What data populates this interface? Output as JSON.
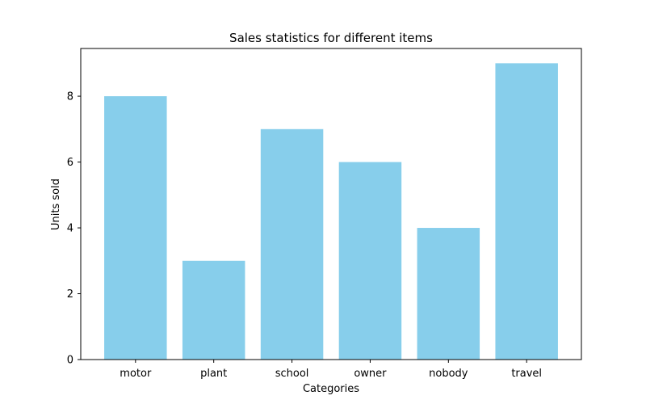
{
  "chart_data": {
    "type": "bar",
    "title": "Sales statistics for different items",
    "xlabel": "Categories",
    "ylabel": "Units sold",
    "categories": [
      "motor",
      "plant",
      "school",
      "owner",
      "nobody",
      "travel"
    ],
    "values": [
      8,
      3,
      7,
      6,
      4,
      9
    ],
    "ylim": [
      0,
      9.45
    ],
    "yticks": [
      0,
      2,
      4,
      6,
      8
    ],
    "bar_color": "#87ceeb",
    "grid": false,
    "legend": "none"
  }
}
